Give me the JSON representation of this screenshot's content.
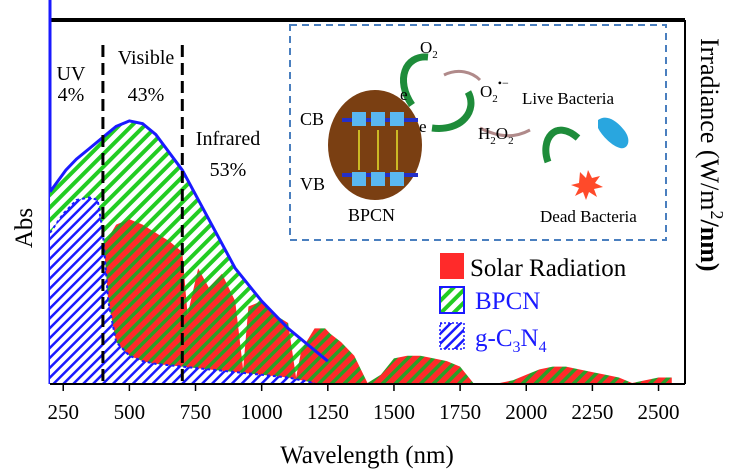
{
  "chart_data": {
    "type": "area",
    "xlabel": "Wavelength (nm)",
    "ylabel_left": "Abs",
    "ylabel_right_parts": [
      "Irradiance (W/m",
      "2",
      "/nm)"
    ],
    "xlim": [
      200,
      2600
    ],
    "x_ticks": [
      250,
      500,
      750,
      1000,
      1250,
      1500,
      1750,
      2000,
      2250,
      2500
    ],
    "x_tick_labels": [
      "250",
      "500",
      "750",
      "1000",
      "1250",
      "1500",
      "1750",
      "2000",
      "2250",
      "2500"
    ],
    "regions": [
      {
        "label": "UV",
        "percent": "4%",
        "boundary_nm": 400
      },
      {
        "label": "Visible",
        "percent": "43%",
        "boundary_nm": 700
      },
      {
        "label": "Infrared",
        "percent": "53%"
      }
    ],
    "legend": {
      "position": "right",
      "entries": [
        {
          "label": "Solar Radiation",
          "color": "#ff2a2a",
          "swatch": "solid"
        },
        {
          "label": "BPCN",
          "color": "#22cc22",
          "swatch": "hatch-green"
        },
        {
          "label_main": "g-C",
          "sub1": "3",
          "mid": "N",
          "sub2": "4",
          "color": "#1a1aff",
          "swatch": "hatch-blue"
        }
      ]
    },
    "series": [
      {
        "name": "BPCN",
        "color": "#1a1aff",
        "x": [
          200,
          230,
          260,
          300,
          350,
          400,
          450,
          500,
          550,
          600,
          700,
          800,
          900,
          1000,
          1100,
          1200,
          1250
        ],
        "y": [
          0.7,
          0.74,
          0.78,
          0.82,
          0.86,
          0.9,
          0.94,
          0.96,
          0.95,
          0.91,
          0.78,
          0.6,
          0.42,
          0.3,
          0.2,
          0.12,
          0.08
        ]
      },
      {
        "name": "g-C3N4",
        "color": "#1a1aff",
        "x": [
          200,
          250,
          300,
          350,
          380,
          400,
          420,
          450,
          500,
          550,
          600,
          700,
          800,
          900,
          1000,
          1100,
          1200
        ],
        "y": [
          0.55,
          0.62,
          0.67,
          0.68,
          0.67,
          0.55,
          0.3,
          0.15,
          0.1,
          0.08,
          0.07,
          0.06,
          0.05,
          0.04,
          0.03,
          0.02,
          0.0
        ]
      },
      {
        "name": "Solar Radiation",
        "color": "#ff2a2a",
        "x": [
          300,
          350,
          400,
          450,
          500,
          550,
          600,
          650,
          700,
          720,
          760,
          800,
          850,
          900,
          930,
          950,
          1000,
          1050,
          1100,
          1130,
          1150,
          1200,
          1220,
          1240,
          1260,
          1300,
          1350,
          1400,
          1450,
          1500,
          1550,
          1600,
          1650,
          1700,
          1750,
          1800,
          1850,
          1900,
          1950,
          2000,
          2050,
          2100,
          2150,
          2200,
          2250,
          2300,
          2350,
          2400,
          2450,
          2500,
          2550
        ],
        "y": [
          0.0,
          0.2,
          0.5,
          0.58,
          0.6,
          0.58,
          0.55,
          0.52,
          0.48,
          0.25,
          0.42,
          0.35,
          0.4,
          0.3,
          0.05,
          0.28,
          0.3,
          0.25,
          0.22,
          0.02,
          0.12,
          0.2,
          0.2,
          0.2,
          0.18,
          0.15,
          0.1,
          0.0,
          0.03,
          0.09,
          0.1,
          0.1,
          0.09,
          0.08,
          0.06,
          0.0,
          0.0,
          0.0,
          0.01,
          0.03,
          0.05,
          0.06,
          0.06,
          0.05,
          0.04,
          0.03,
          0.02,
          0.0,
          0.01,
          0.02,
          0.02
        ]
      }
    ]
  },
  "inset": {
    "cb_label": "CB",
    "vb_label": "VB",
    "catalyst_label": "BPCN",
    "electron_label": "e",
    "electron_label_2": "e",
    "o2_main": "O",
    "o2_sub": "2",
    "superoxide_main": "O",
    "superoxide_sub": "2",
    "superoxide_sup": "•−",
    "h2o2_h": "H",
    "h2o2_sub1": "2",
    "h2o2_o": "O",
    "h2o2_sub2": "2",
    "live_bacteria": "Live Bacteria",
    "dead_bacteria": "Dead Bacteria"
  }
}
